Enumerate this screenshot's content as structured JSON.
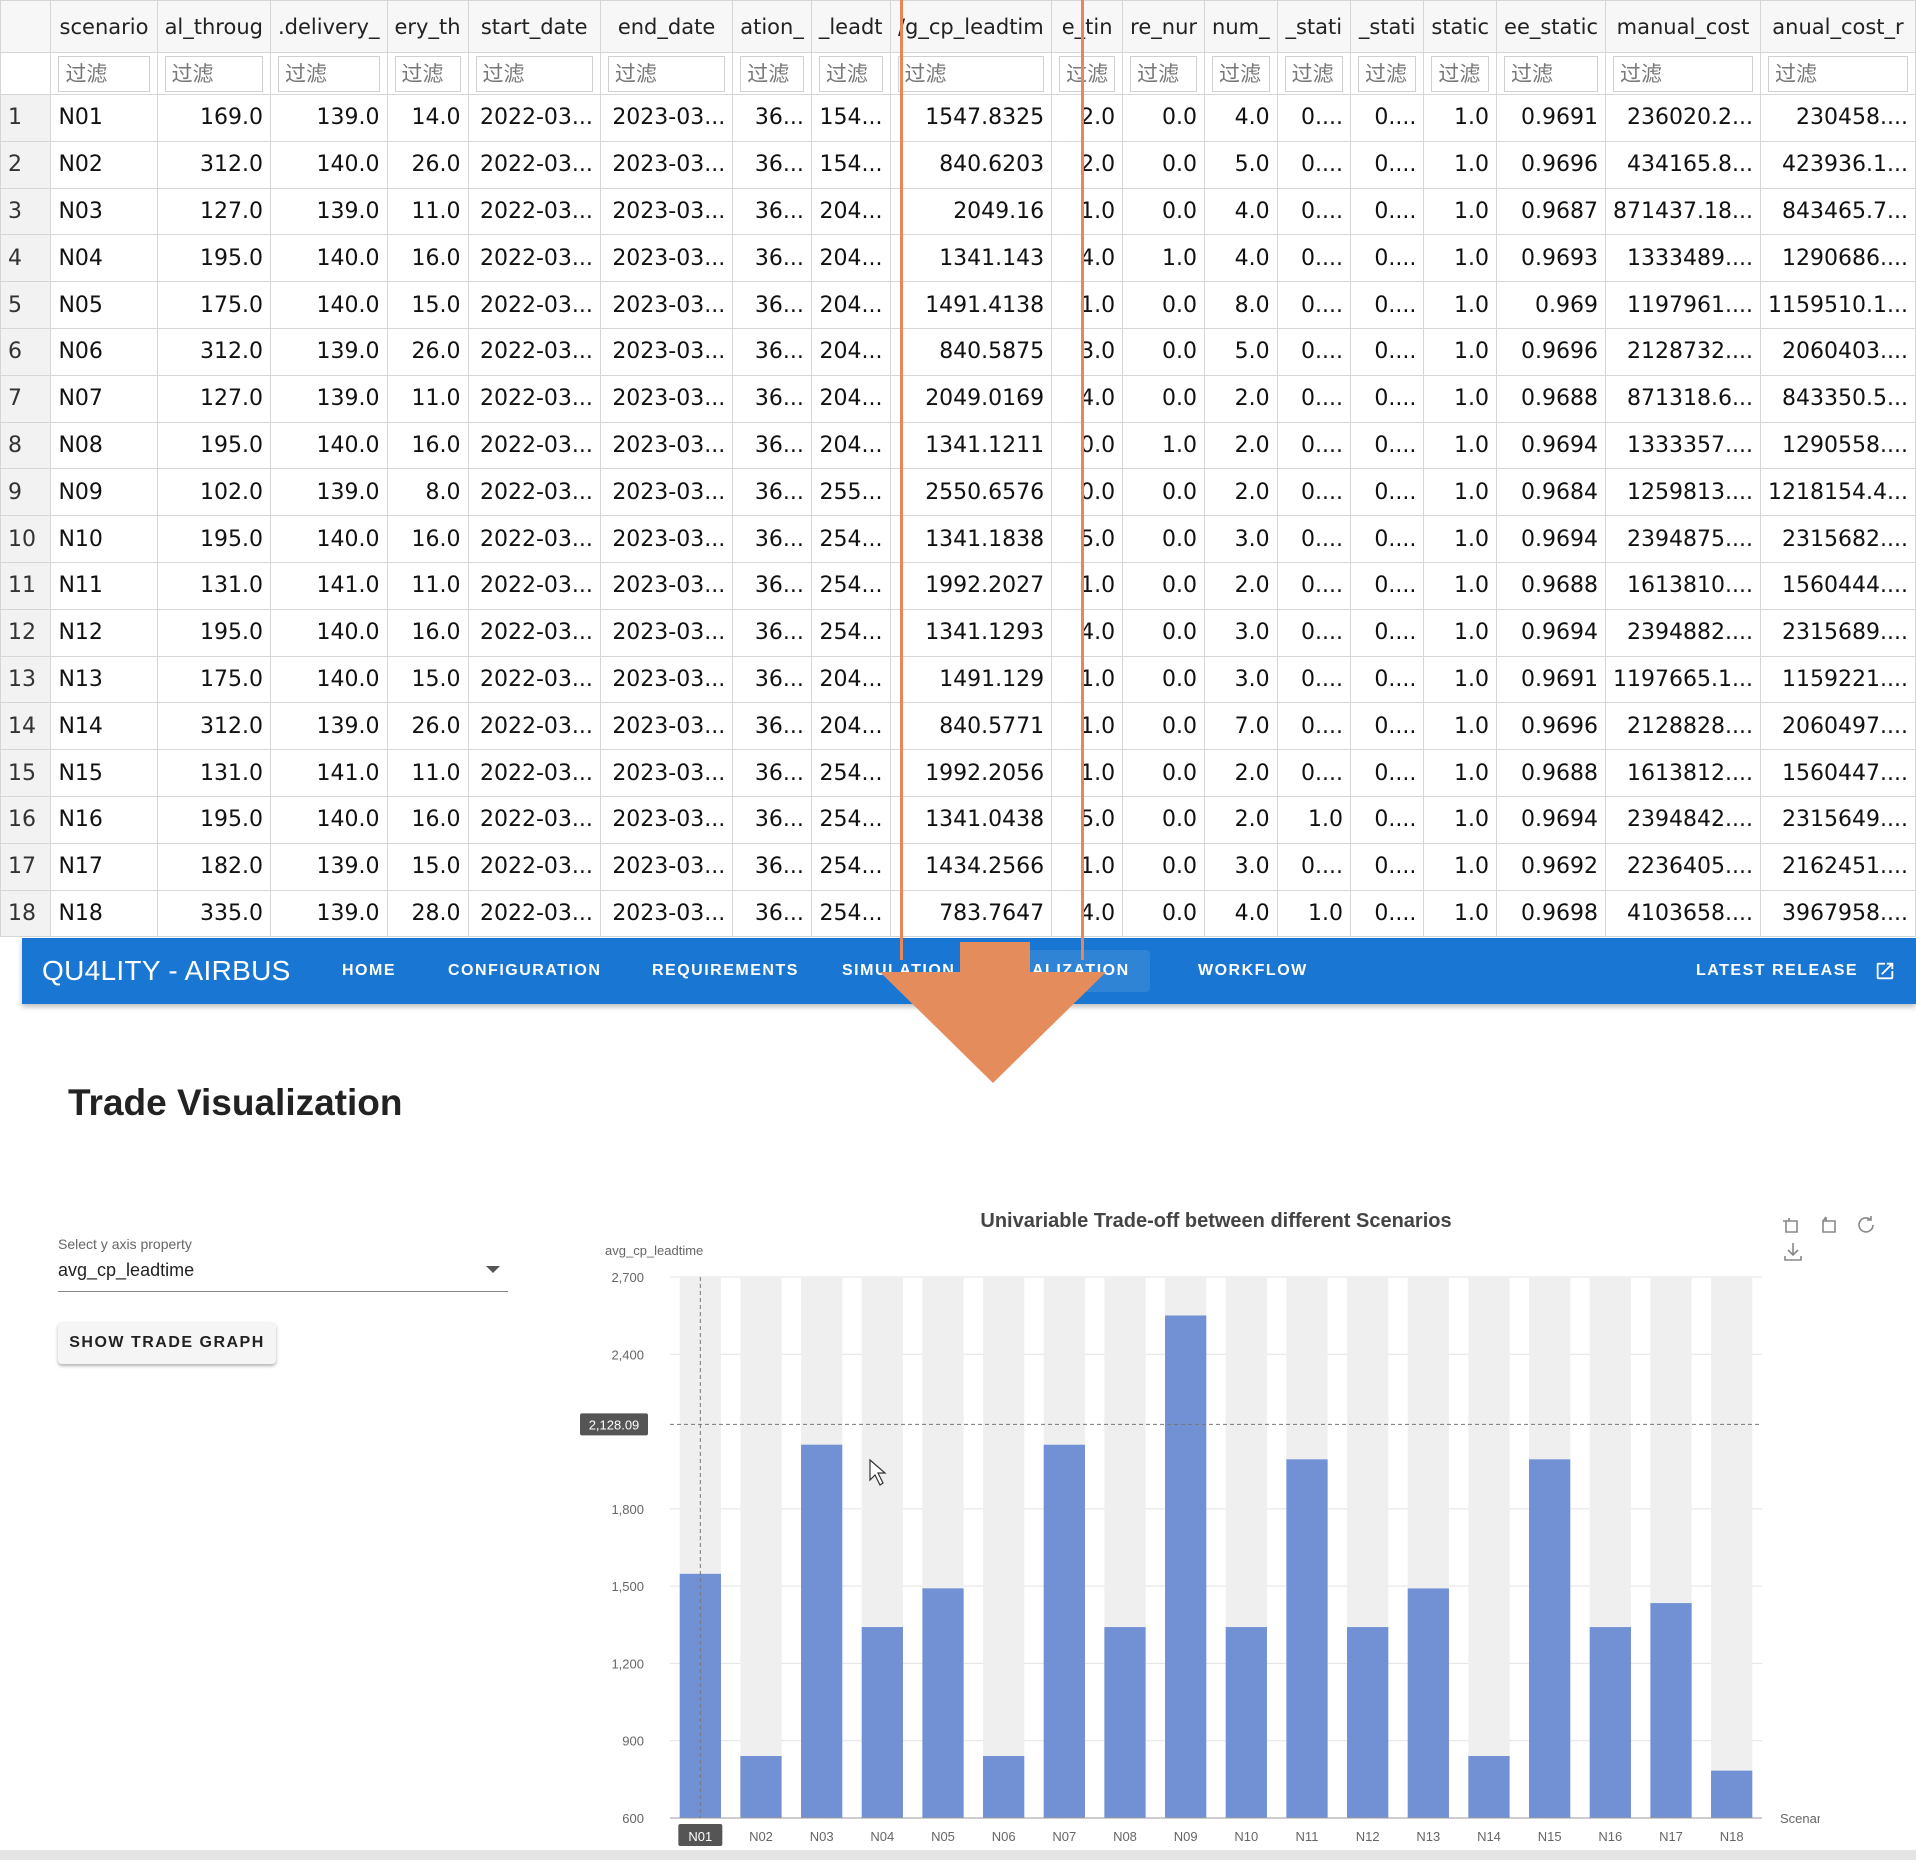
{
  "grid": {
    "columns": [
      "scenario",
      "al_throug",
      ".delivery_",
      "ery_th",
      "start_date",
      "end_date",
      "ation_",
      "_leadt",
      "/g_cp_leadtim",
      "e_tin",
      "re_nur",
      "num_",
      "_stati",
      "_stati",
      "static",
      "ee_static",
      "manual_cost",
      "anual_cost_r"
    ],
    "filter_placeholder": "过滤",
    "rows": [
      [
        "1",
        "N01",
        "169.0",
        "139.0",
        "14.0",
        "2022-03...",
        "2023-03...",
        "36...",
        "154...",
        "1547.8325",
        "2.0",
        "0.0",
        "4.0",
        "0....",
        "0....",
        "1.0",
        "0.9691",
        "236020.2...",
        "230458...."
      ],
      [
        "2",
        "N02",
        "312.0",
        "140.0",
        "26.0",
        "2022-03...",
        "2023-03...",
        "36...",
        "154...",
        "840.6203",
        "2.0",
        "0.0",
        "5.0",
        "0....",
        "0....",
        "1.0",
        "0.9696",
        "434165.8...",
        "423936.1..."
      ],
      [
        "3",
        "N03",
        "127.0",
        "139.0",
        "11.0",
        "2022-03...",
        "2023-03...",
        "36...",
        "204...",
        "2049.16",
        "1.0",
        "0.0",
        "4.0",
        "0....",
        "0....",
        "1.0",
        "0.9687",
        "871437.18...",
        "843465.7..."
      ],
      [
        "4",
        "N04",
        "195.0",
        "140.0",
        "16.0",
        "2022-03...",
        "2023-03...",
        "36...",
        "204...",
        "1341.143",
        "4.0",
        "1.0",
        "4.0",
        "0....",
        "0....",
        "1.0",
        "0.9693",
        "1333489....",
        "1290686...."
      ],
      [
        "5",
        "N05",
        "175.0",
        "140.0",
        "15.0",
        "2022-03...",
        "2023-03...",
        "36...",
        "204...",
        "1491.4138",
        "1.0",
        "0.0",
        "8.0",
        "0....",
        "0....",
        "1.0",
        "0.969",
        "1197961....",
        "1159510.1..."
      ],
      [
        "6",
        "N06",
        "312.0",
        "139.0",
        "26.0",
        "2022-03...",
        "2023-03...",
        "36...",
        "204...",
        "840.5875",
        "3.0",
        "0.0",
        "5.0",
        "0....",
        "0....",
        "1.0",
        "0.9696",
        "2128732....",
        "2060403...."
      ],
      [
        "7",
        "N07",
        "127.0",
        "139.0",
        "11.0",
        "2022-03...",
        "2023-03...",
        "36...",
        "204...",
        "2049.0169",
        "4.0",
        "0.0",
        "2.0",
        "0....",
        "0....",
        "1.0",
        "0.9688",
        "871318.6...",
        "843350.5..."
      ],
      [
        "8",
        "N08",
        "195.0",
        "140.0",
        "16.0",
        "2022-03...",
        "2023-03...",
        "36...",
        "204...",
        "1341.1211",
        "0.0",
        "1.0",
        "2.0",
        "0....",
        "0....",
        "1.0",
        "0.9694",
        "1333357....",
        "1290558...."
      ],
      [
        "9",
        "N09",
        "102.0",
        "139.0",
        "8.0",
        "2022-03...",
        "2023-03...",
        "36...",
        "255...",
        "2550.6576",
        "0.0",
        "0.0",
        "2.0",
        "0....",
        "0....",
        "1.0",
        "0.9684",
        "1259813....",
        "1218154.4..."
      ],
      [
        "10",
        "N10",
        "195.0",
        "140.0",
        "16.0",
        "2022-03...",
        "2023-03...",
        "36...",
        "254...",
        "1341.1838",
        "5.0",
        "0.0",
        "3.0",
        "0....",
        "0....",
        "1.0",
        "0.9694",
        "2394875....",
        "2315682...."
      ],
      [
        "11",
        "N11",
        "131.0",
        "141.0",
        "11.0",
        "2022-03...",
        "2023-03...",
        "36...",
        "254...",
        "1992.2027",
        "1.0",
        "0.0",
        "2.0",
        "0....",
        "0....",
        "1.0",
        "0.9688",
        "1613810....",
        "1560444...."
      ],
      [
        "12",
        "N12",
        "195.0",
        "140.0",
        "16.0",
        "2022-03...",
        "2023-03...",
        "36...",
        "254...",
        "1341.1293",
        "4.0",
        "0.0",
        "3.0",
        "0....",
        "0....",
        "1.0",
        "0.9694",
        "2394882....",
        "2315689...."
      ],
      [
        "13",
        "N13",
        "175.0",
        "140.0",
        "15.0",
        "2022-03...",
        "2023-03...",
        "36...",
        "204...",
        "1491.129",
        "1.0",
        "0.0",
        "3.0",
        "0....",
        "0....",
        "1.0",
        "0.9691",
        "1197665.1...",
        "1159221...."
      ],
      [
        "14",
        "N14",
        "312.0",
        "139.0",
        "26.0",
        "2022-03...",
        "2023-03...",
        "36...",
        "204...",
        "840.5771",
        "1.0",
        "0.0",
        "7.0",
        "0....",
        "0....",
        "1.0",
        "0.9696",
        "2128828....",
        "2060497...."
      ],
      [
        "15",
        "N15",
        "131.0",
        "141.0",
        "11.0",
        "2022-03...",
        "2023-03...",
        "36...",
        "254...",
        "1992.2056",
        "1.0",
        "0.0",
        "2.0",
        "0....",
        "0....",
        "1.0",
        "0.9688",
        "1613812....",
        "1560447...."
      ],
      [
        "16",
        "N16",
        "195.0",
        "140.0",
        "16.0",
        "2022-03...",
        "2023-03...",
        "36...",
        "254...",
        "1341.0438",
        "5.0",
        "0.0",
        "2.0",
        "1.0",
        "0....",
        "1.0",
        "0.9694",
        "2394842....",
        "2315649...."
      ],
      [
        "17",
        "N17",
        "182.0",
        "139.0",
        "15.0",
        "2022-03...",
        "2023-03...",
        "36...",
        "254...",
        "1434.2566",
        "1.0",
        "0.0",
        "3.0",
        "0....",
        "0....",
        "1.0",
        "0.9692",
        "2236405....",
        "2162451...."
      ],
      [
        "18",
        "N18",
        "335.0",
        "139.0",
        "28.0",
        "2022-03...",
        "2023-03...",
        "36...",
        "254...",
        "783.7647",
        "4.0",
        "0.0",
        "4.0",
        "1.0",
        "0....",
        "1.0",
        "0.9698",
        "4103658....",
        "3967958...."
      ]
    ]
  },
  "appbar": {
    "brand": "QU4LITY - AIRBUS",
    "nav": [
      "HOME",
      "CONFIGURATION",
      "REQUIREMENTS",
      "SIMULATION",
      "ALIZATION",
      "WORKFLOW"
    ],
    "active_index": 4,
    "release": "LATEST RELEASE",
    "color": "#1976d2"
  },
  "page": {
    "title": "Trade Visualization",
    "y_select_label": "Select y axis property",
    "y_select_value": "avg_cp_leadtime",
    "show_button": "SHOW TRADE GRAPH"
  },
  "toolbox_icons": [
    "zoom-icon",
    "zoom-reset-icon",
    "restore-icon",
    "download-icon"
  ],
  "chart_data": {
    "type": "bar",
    "title": "Univariable Trade-off between different Scenarios",
    "ylabel": "avg_cp_leadtime",
    "xlabel": "Scenarios",
    "ylim": [
      600,
      2700
    ],
    "yticks": [
      600,
      900,
      1200,
      1500,
      1800,
      2400,
      2700
    ],
    "yticklabels": [
      "600",
      "900",
      "1,200",
      "1,500",
      "1,800",
      "2,400",
      "2,700"
    ],
    "pointer_value": 2128.09,
    "pointer_label": "2,128.09",
    "highlighted_category": "N01",
    "categories": [
      "N01",
      "N02",
      "N03",
      "N04",
      "N05",
      "N06",
      "N07",
      "N08",
      "N09",
      "N10",
      "N11",
      "N12",
      "N13",
      "N14",
      "N15",
      "N16",
      "N17",
      "N18"
    ],
    "values": [
      1547.8325,
      840.6203,
      2049.16,
      1341.143,
      1491.4138,
      840.5875,
      2049.0169,
      1341.1211,
      2550.6576,
      1341.1838,
      1992.2027,
      1341.1293,
      1491.129,
      840.5771,
      1992.2056,
      1341.0438,
      1434.2566,
      783.7647
    ],
    "bar_color": "#7290d4",
    "background_bar_color": "#efefef",
    "grid": true
  }
}
